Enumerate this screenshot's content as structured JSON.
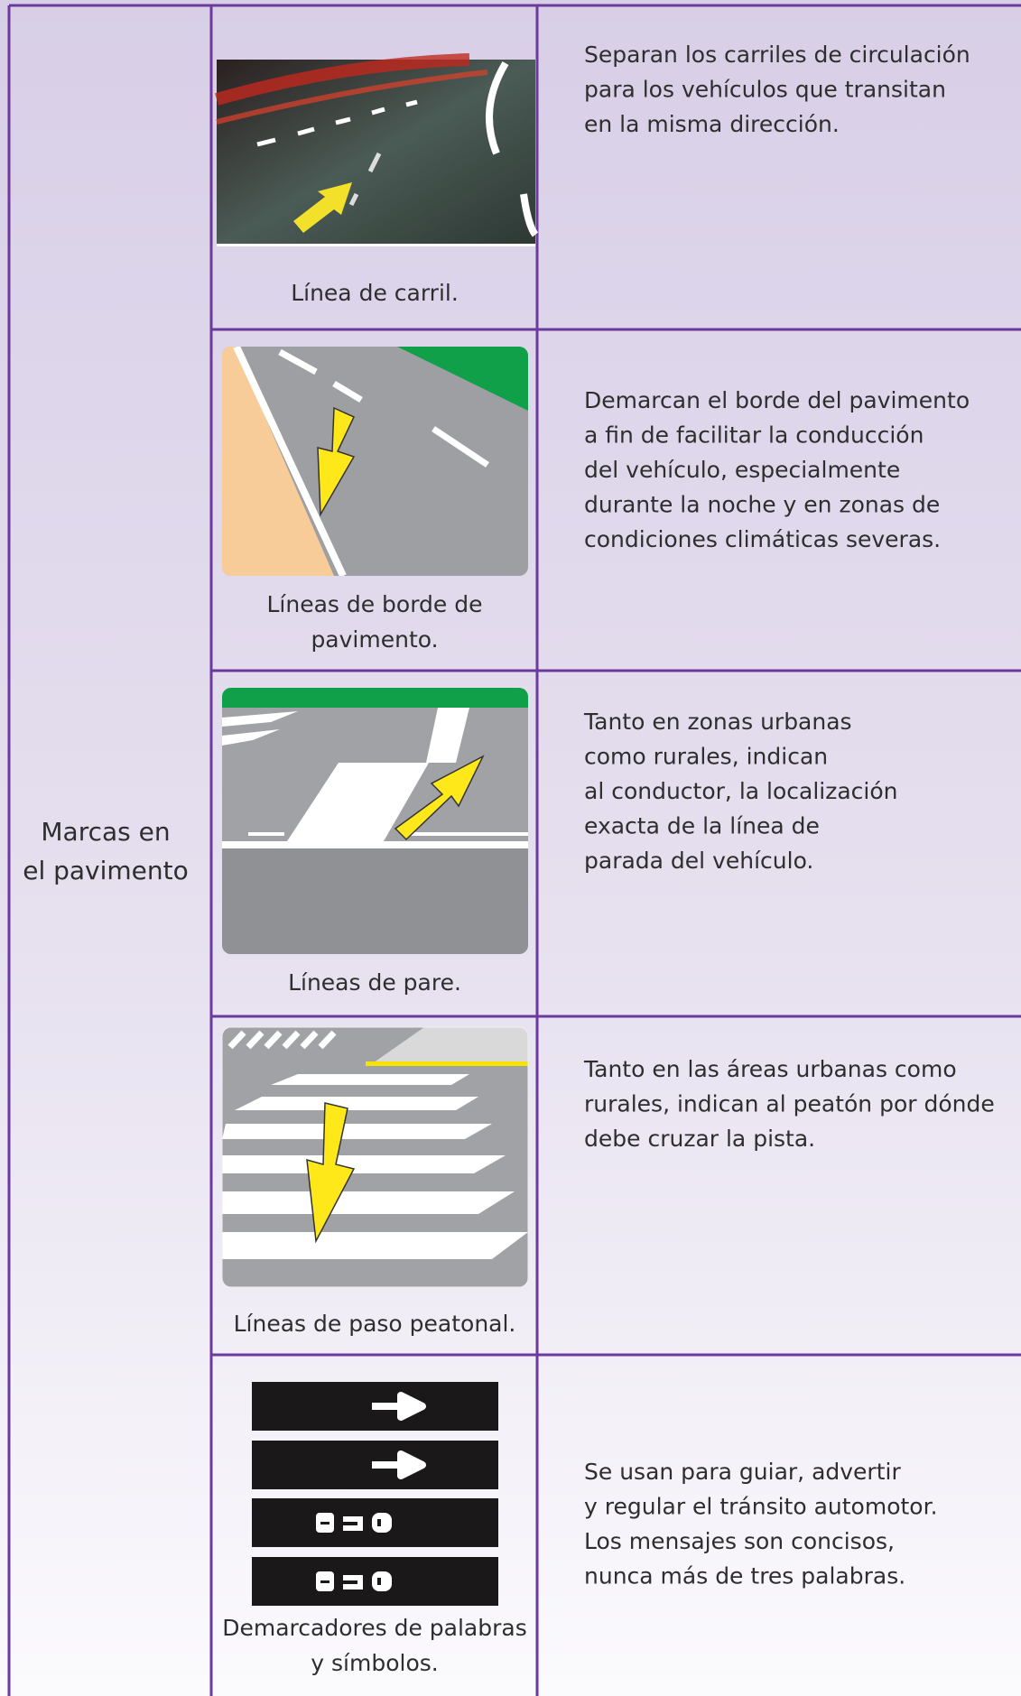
{
  "label": [
    "Marcas en",
    "el pavimento"
  ],
  "rows": [
    {
      "caption": [
        "Línea de carril."
      ],
      "description": [
        "Separan los carriles de circulación",
        "para los vehículos que transitan",
        "en la misma dirección."
      ]
    },
    {
      "caption": [
        "Líneas de borde de",
        "pavimento."
      ],
      "description": [
        "Demarcan el borde del pavimento",
        "a fin de facilitar la conducción",
        "del vehículo, especialmente",
        "durante la noche y en zonas de",
        "condiciones climáticas severas."
      ]
    },
    {
      "caption": [
        "Líneas de pare."
      ],
      "description": [
        "Tanto en zonas urbanas",
        "como rurales, indican",
        "al conductor, la localización",
        "exacta de la línea de",
        "parada del vehículo."
      ]
    },
    {
      "caption": [
        "Líneas de paso peatonal."
      ],
      "description": [
        "Tanto en las áreas urbanas como",
        "rurales, indican al peatón por dónde",
        "debe cruzar la pista."
      ]
    },
    {
      "caption": [
        "Demarcadores de palabras",
        "y símbolos."
      ],
      "description": [
        "Se usan para guiar, advertir",
        "y regular el tránsito automotor.",
        "Los mensajes son concisos,",
        "nunca más de tres palabras."
      ]
    }
  ]
}
